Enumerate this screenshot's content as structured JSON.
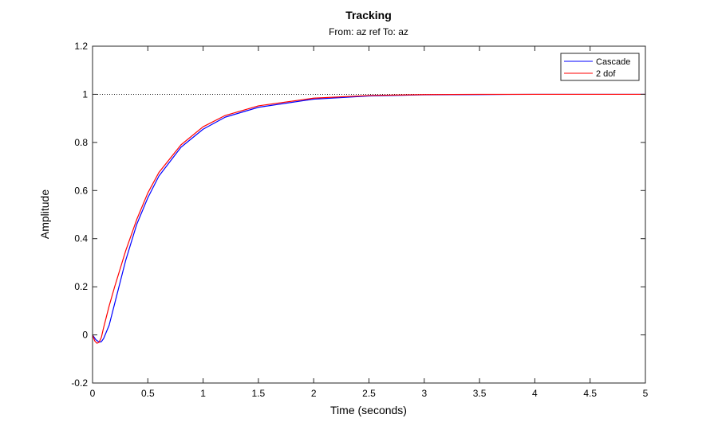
{
  "chart_data": {
    "type": "line",
    "title": "Tracking",
    "subtitle": "From: az ref  To: az",
    "xlabel": "Time (seconds)",
    "ylabel": "Amplitude",
    "xlim": [
      0,
      5
    ],
    "ylim": [
      -0.2,
      1.2
    ],
    "x_ticks": [
      "0",
      "0.5",
      "1",
      "1.5",
      "2",
      "2.5",
      "3",
      "3.5",
      "4",
      "4.5",
      "5"
    ],
    "y_ticks": [
      "-0.2",
      "0",
      "0.2",
      "0.4",
      "0.6",
      "0.8",
      "1",
      "1.2"
    ],
    "grid": false,
    "legend_position": "top-right",
    "reference_line": {
      "y": 1,
      "style": "dotted",
      "color": "#000000"
    },
    "series": [
      {
        "name": "Cascade",
        "color": "#0000ff",
        "x": [
          0,
          0.03,
          0.06,
          0.08,
          0.1,
          0.15,
          0.2,
          0.3,
          0.4,
          0.5,
          0.6,
          0.8,
          1.0,
          1.2,
          1.5,
          2.0,
          2.5,
          3.0,
          3.5,
          4.0,
          5.0
        ],
        "y": [
          0,
          -0.02,
          -0.03,
          -0.028,
          -0.015,
          0.04,
          0.13,
          0.31,
          0.46,
          0.57,
          0.66,
          0.78,
          0.855,
          0.905,
          0.946,
          0.98,
          0.993,
          0.998,
          0.999,
          1.0,
          1.0
        ]
      },
      {
        "name": "2 dof",
        "color": "#ff0000",
        "x": [
          0,
          0.02,
          0.04,
          0.06,
          0.08,
          0.1,
          0.15,
          0.2,
          0.3,
          0.4,
          0.5,
          0.6,
          0.8,
          1.0,
          1.2,
          1.5,
          2.0,
          2.5,
          3.0,
          3.5,
          4.0,
          5.0
        ],
        "y": [
          0,
          -0.025,
          -0.035,
          -0.03,
          -0.01,
          0.03,
          0.12,
          0.2,
          0.35,
          0.48,
          0.59,
          0.675,
          0.79,
          0.865,
          0.912,
          0.952,
          0.984,
          0.995,
          0.999,
          1.0,
          1.0,
          1.0
        ]
      }
    ]
  }
}
